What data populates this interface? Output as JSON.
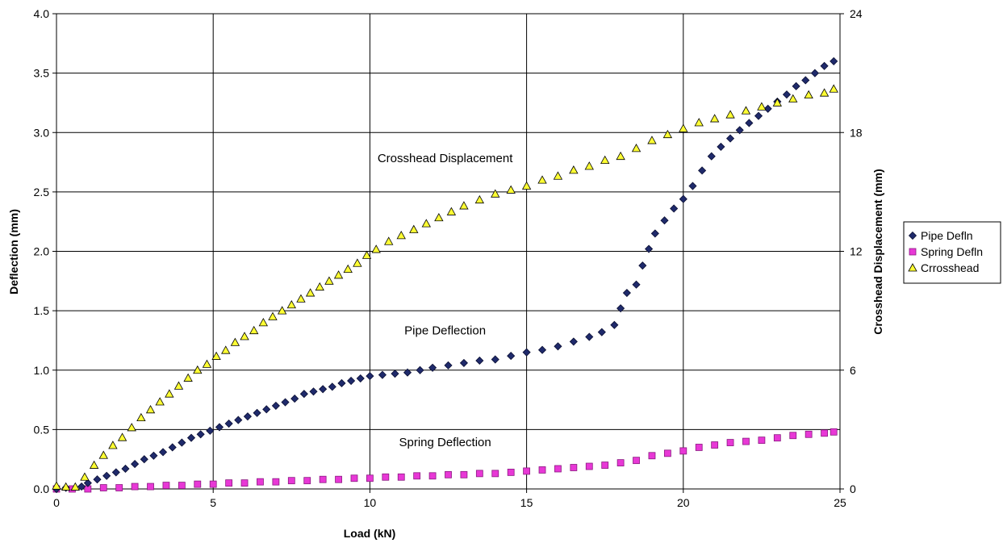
{
  "chart_data": {
    "type": "scatter",
    "title": "",
    "xlabel": "Load (kN)",
    "ylabel": "Deflection (mm)",
    "y2label": "Crosshead Displacement (mm)",
    "xlim": [
      0,
      25
    ],
    "ylim": [
      0,
      4
    ],
    "y2lim": [
      0,
      24
    ],
    "xticks": [
      "0",
      "5",
      "10",
      "15",
      "20",
      "25"
    ],
    "yticks": [
      "0.0",
      "0.5",
      "1.0",
      "1.5",
      "2.0",
      "2.5",
      "3.0",
      "3.5",
      "4.0"
    ],
    "y2ticks": [
      "0",
      "6",
      "12",
      "18",
      "24"
    ],
    "grid": true,
    "legend_position": "right",
    "annotations": [
      {
        "text": "Crosshead Displacement",
        "x": 12.4,
        "y": 2.75
      },
      {
        "text": "Pipe Deflection",
        "x": 12.4,
        "y": 1.3
      },
      {
        "text": "Spring Deflection",
        "x": 12.4,
        "y": 0.36
      }
    ],
    "series": [
      {
        "name": "Pipe Defln",
        "marker": "diamond",
        "color": "#1F2A6B",
        "axis": "left",
        "points": [
          [
            0.0,
            0.0
          ],
          [
            0.3,
            0.01
          ],
          [
            0.8,
            0.02
          ],
          [
            1.0,
            0.05
          ],
          [
            1.3,
            0.08
          ],
          [
            1.6,
            0.11
          ],
          [
            1.9,
            0.14
          ],
          [
            2.2,
            0.17
          ],
          [
            2.5,
            0.21
          ],
          [
            2.8,
            0.25
          ],
          [
            3.1,
            0.28
          ],
          [
            3.4,
            0.31
          ],
          [
            3.7,
            0.35
          ],
          [
            4.0,
            0.39
          ],
          [
            4.3,
            0.43
          ],
          [
            4.6,
            0.46
          ],
          [
            4.9,
            0.49
          ],
          [
            5.2,
            0.52
          ],
          [
            5.5,
            0.55
          ],
          [
            5.8,
            0.58
          ],
          [
            6.1,
            0.61
          ],
          [
            6.4,
            0.64
          ],
          [
            6.7,
            0.67
          ],
          [
            7.0,
            0.7
          ],
          [
            7.3,
            0.73
          ],
          [
            7.6,
            0.76
          ],
          [
            7.9,
            0.8
          ],
          [
            8.2,
            0.82
          ],
          [
            8.5,
            0.84
          ],
          [
            8.8,
            0.86
          ],
          [
            9.1,
            0.89
          ],
          [
            9.4,
            0.91
          ],
          [
            9.7,
            0.93
          ],
          [
            10.0,
            0.95
          ],
          [
            10.4,
            0.96
          ],
          [
            10.8,
            0.97
          ],
          [
            11.2,
            0.98
          ],
          [
            11.6,
            1.0
          ],
          [
            12.0,
            1.02
          ],
          [
            12.5,
            1.04
          ],
          [
            13.0,
            1.06
          ],
          [
            13.5,
            1.08
          ],
          [
            14.0,
            1.09
          ],
          [
            14.5,
            1.12
          ],
          [
            15.0,
            1.15
          ],
          [
            15.5,
            1.17
          ],
          [
            16.0,
            1.2
          ],
          [
            16.5,
            1.24
          ],
          [
            17.0,
            1.28
          ],
          [
            17.4,
            1.32
          ],
          [
            17.8,
            1.38
          ],
          [
            18.0,
            1.52
          ],
          [
            18.2,
            1.65
          ],
          [
            18.5,
            1.72
          ],
          [
            18.7,
            1.88
          ],
          [
            18.9,
            2.02
          ],
          [
            19.1,
            2.15
          ],
          [
            19.4,
            2.26
          ],
          [
            19.7,
            2.36
          ],
          [
            20.0,
            2.44
          ],
          [
            20.3,
            2.55
          ],
          [
            20.6,
            2.68
          ],
          [
            20.9,
            2.8
          ],
          [
            21.2,
            2.88
          ],
          [
            21.5,
            2.95
          ],
          [
            21.8,
            3.02
          ],
          [
            22.1,
            3.08
          ],
          [
            22.4,
            3.14
          ],
          [
            22.7,
            3.2
          ],
          [
            23.0,
            3.26
          ],
          [
            23.3,
            3.32
          ],
          [
            23.6,
            3.39
          ],
          [
            23.9,
            3.44
          ],
          [
            24.2,
            3.5
          ],
          [
            24.5,
            3.56
          ],
          [
            24.8,
            3.6
          ]
        ]
      },
      {
        "name": "Spring Defln",
        "marker": "square",
        "color": "#E838D6",
        "axis": "left",
        "points": [
          [
            0.0,
            0.0
          ],
          [
            0.5,
            0.0
          ],
          [
            1.0,
            0.0
          ],
          [
            1.5,
            0.01
          ],
          [
            2.0,
            0.01
          ],
          [
            2.5,
            0.02
          ],
          [
            3.0,
            0.02
          ],
          [
            3.5,
            0.03
          ],
          [
            4.0,
            0.03
          ],
          [
            4.5,
            0.04
          ],
          [
            5.0,
            0.04
          ],
          [
            5.5,
            0.05
          ],
          [
            6.0,
            0.05
          ],
          [
            6.5,
            0.06
          ],
          [
            7.0,
            0.06
          ],
          [
            7.5,
            0.07
          ],
          [
            8.0,
            0.07
          ],
          [
            8.5,
            0.08
          ],
          [
            9.0,
            0.08
          ],
          [
            9.5,
            0.09
          ],
          [
            10.0,
            0.09
          ],
          [
            10.5,
            0.1
          ],
          [
            11.0,
            0.1
          ],
          [
            11.5,
            0.11
          ],
          [
            12.0,
            0.11
          ],
          [
            12.5,
            0.12
          ],
          [
            13.0,
            0.12
          ],
          [
            13.5,
            0.13
          ],
          [
            14.0,
            0.13
          ],
          [
            14.5,
            0.14
          ],
          [
            15.0,
            0.15
          ],
          [
            15.5,
            0.16
          ],
          [
            16.0,
            0.17
          ],
          [
            16.5,
            0.18
          ],
          [
            17.0,
            0.19
          ],
          [
            17.5,
            0.2
          ],
          [
            18.0,
            0.22
          ],
          [
            18.5,
            0.24
          ],
          [
            19.0,
            0.28
          ],
          [
            19.5,
            0.3
          ],
          [
            20.0,
            0.32
          ],
          [
            20.5,
            0.35
          ],
          [
            21.0,
            0.37
          ],
          [
            21.5,
            0.39
          ],
          [
            22.0,
            0.4
          ],
          [
            22.5,
            0.41
          ],
          [
            23.0,
            0.43
          ],
          [
            23.5,
            0.45
          ],
          [
            24.0,
            0.46
          ],
          [
            24.5,
            0.47
          ],
          [
            24.8,
            0.48
          ]
        ]
      },
      {
        "name": "Crrosshead",
        "marker": "triangle",
        "color": "#FFFF33",
        "axis": "right",
        "points": [
          [
            0.0,
            0.15
          ],
          [
            0.3,
            0.1
          ],
          [
            0.6,
            0.1
          ],
          [
            0.9,
            0.6
          ],
          [
            1.2,
            1.2
          ],
          [
            1.5,
            1.7
          ],
          [
            1.8,
            2.2
          ],
          [
            2.1,
            2.6
          ],
          [
            2.4,
            3.1
          ],
          [
            2.7,
            3.6
          ],
          [
            3.0,
            4.0
          ],
          [
            3.3,
            4.4
          ],
          [
            3.6,
            4.8
          ],
          [
            3.9,
            5.2
          ],
          [
            4.2,
            5.6
          ],
          [
            4.5,
            6.0
          ],
          [
            4.8,
            6.3
          ],
          [
            5.1,
            6.7
          ],
          [
            5.4,
            7.0
          ],
          [
            5.7,
            7.4
          ],
          [
            6.0,
            7.7
          ],
          [
            6.3,
            8.0
          ],
          [
            6.6,
            8.4
          ],
          [
            6.9,
            8.7
          ],
          [
            7.2,
            9.0
          ],
          [
            7.5,
            9.3
          ],
          [
            7.8,
            9.6
          ],
          [
            8.1,
            9.9
          ],
          [
            8.4,
            10.2
          ],
          [
            8.7,
            10.5
          ],
          [
            9.0,
            10.8
          ],
          [
            9.3,
            11.1
          ],
          [
            9.6,
            11.4
          ],
          [
            9.9,
            11.8
          ],
          [
            10.2,
            12.1
          ],
          [
            10.6,
            12.5
          ],
          [
            11.0,
            12.8
          ],
          [
            11.4,
            13.1
          ],
          [
            11.8,
            13.4
          ],
          [
            12.2,
            13.7
          ],
          [
            12.6,
            14.0
          ],
          [
            13.0,
            14.3
          ],
          [
            13.5,
            14.6
          ],
          [
            14.0,
            14.9
          ],
          [
            14.5,
            15.1
          ],
          [
            15.0,
            15.3
          ],
          [
            15.5,
            15.6
          ],
          [
            16.0,
            15.8
          ],
          [
            16.5,
            16.1
          ],
          [
            17.0,
            16.3
          ],
          [
            17.5,
            16.6
          ],
          [
            18.0,
            16.8
          ],
          [
            18.5,
            17.2
          ],
          [
            19.0,
            17.6
          ],
          [
            19.5,
            17.9
          ],
          [
            20.0,
            18.2
          ],
          [
            20.5,
            18.5
          ],
          [
            21.0,
            18.7
          ],
          [
            21.5,
            18.9
          ],
          [
            22.0,
            19.1
          ],
          [
            22.5,
            19.3
          ],
          [
            23.0,
            19.5
          ],
          [
            23.5,
            19.7
          ],
          [
            24.0,
            19.9
          ],
          [
            24.5,
            20.0
          ],
          [
            24.8,
            20.2
          ]
        ]
      }
    ]
  }
}
